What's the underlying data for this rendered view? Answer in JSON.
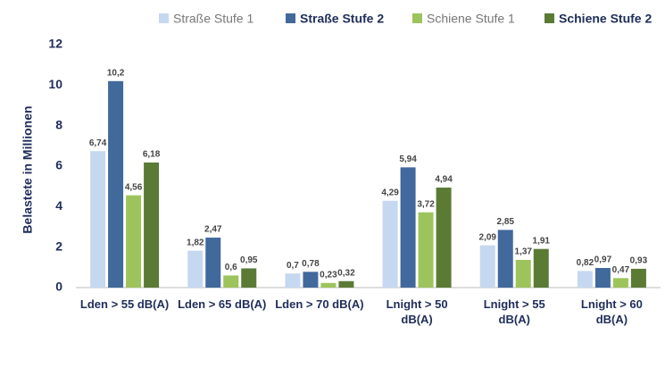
{
  "chart_data": {
    "type": "bar",
    "y_axis_label": "Belastete in Millionen",
    "categories": [
      "Lden > 55 dB(A)",
      "Lden > 65 dB(A)",
      "Lden > 70 dB(A)",
      "Lnight > 50\ndB(A)",
      "Lnight > 55\ndB(A)",
      "Lnight > 60\ndB(A)"
    ],
    "series": [
      {
        "name": "Straße Stufe 1",
        "color": "#c6d8f0",
        "values": [
          6.74,
          1.82,
          0.7,
          4.29,
          2.09,
          0.82
        ],
        "value_labels": [
          "6,74",
          "1,82",
          "0,7",
          "4,29",
          "2,09",
          "0,82"
        ]
      },
      {
        "name": "Straße Stufe 2",
        "color": "#41699c",
        "values": [
          10.2,
          2.47,
          0.78,
          5.94,
          2.85,
          0.97
        ],
        "value_labels": [
          "10,2",
          "2,47",
          "0,78",
          "5,94",
          "2,85",
          "0,97"
        ]
      },
      {
        "name": "Schiene Stufe 1",
        "color": "#9dc45c",
        "values": [
          4.56,
          0.6,
          0.23,
          3.72,
          1.37,
          0.47
        ],
        "value_labels": [
          "4,56",
          "0,6",
          "0,23",
          "3,72",
          "1,37",
          "0,47"
        ]
      },
      {
        "name": "Schiene Stufe 2",
        "color": "#5b7b35",
        "values": [
          6.18,
          0.95,
          0.32,
          4.94,
          1.91,
          0.93
        ],
        "value_labels": [
          "6,18",
          "0,95",
          "0,32",
          "4,94",
          "1,91",
          "0,93"
        ]
      }
    ],
    "ylim": [
      0,
      12
    ],
    "yticks": [
      0,
      2,
      4,
      6,
      8,
      10,
      12
    ],
    "grid": false,
    "legend": "top"
  }
}
